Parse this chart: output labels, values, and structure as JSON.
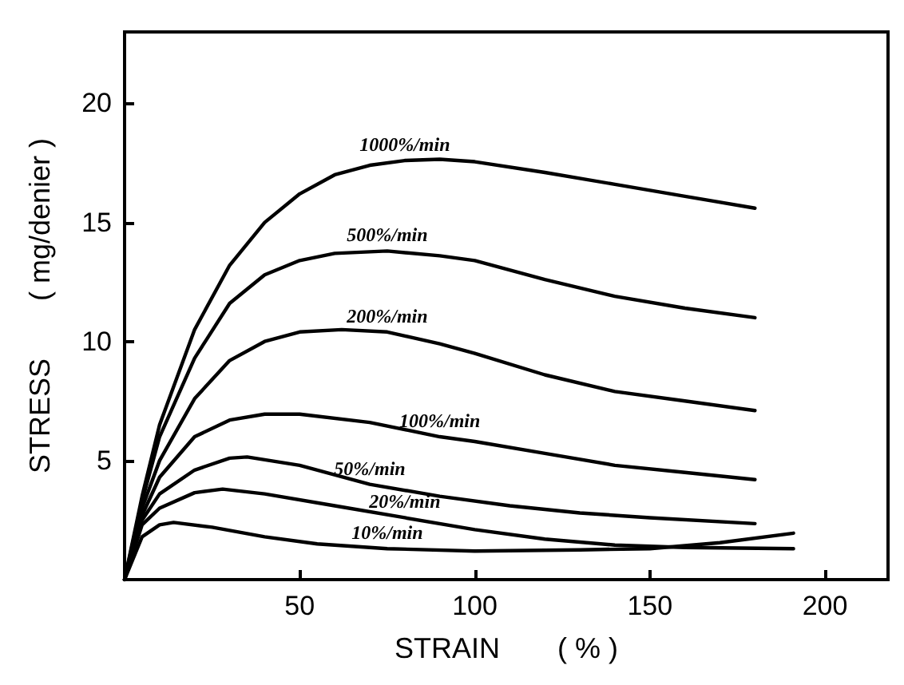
{
  "chart_data": {
    "type": "line",
    "xlabel": "STRAIN　　( % )",
    "ylabel": "STRESS　　( mg/denier )",
    "xlim": [
      0,
      218
    ],
    "ylim": [
      0,
      23
    ],
    "xticks": [
      50,
      100,
      150,
      200
    ],
    "yticks": [
      5,
      10,
      15,
      20
    ],
    "grid": false,
    "legend": false,
    "marker": "none",
    "line_style": "solid",
    "series": [
      {
        "name": "1000%/min",
        "color": "#000000",
        "x": [
          0,
          5,
          10,
          20,
          30,
          40,
          50,
          60,
          70,
          80,
          90,
          100,
          120,
          140,
          160,
          180
        ],
        "values": [
          0,
          3.5,
          6.5,
          10.5,
          13.2,
          15,
          16.2,
          17,
          17.4,
          17.6,
          17.65,
          17.55,
          17.1,
          16.6,
          16.1,
          15.6
        ]
      },
      {
        "name": "500%/min",
        "color": "#000000",
        "x": [
          0,
          5,
          10,
          20,
          30,
          40,
          50,
          60,
          75,
          90,
          100,
          120,
          140,
          160,
          180
        ],
        "values": [
          0,
          3.3,
          6,
          9.3,
          11.6,
          12.8,
          13.4,
          13.7,
          13.8,
          13.6,
          13.4,
          12.6,
          11.9,
          11.4,
          11
        ]
      },
      {
        "name": "200%/min",
        "color": "#000000",
        "x": [
          0,
          5,
          10,
          20,
          30,
          40,
          50,
          62,
          75,
          90,
          100,
          120,
          140,
          160,
          180
        ],
        "values": [
          0,
          3,
          5,
          7.6,
          9.2,
          10,
          10.4,
          10.5,
          10.4,
          9.9,
          9.5,
          8.6,
          7.9,
          7.5,
          7.1
        ]
      },
      {
        "name": "100%/min",
        "color": "#000000",
        "x": [
          0,
          5,
          10,
          20,
          30,
          40,
          50,
          70,
          90,
          100,
          120,
          140,
          160,
          180
        ],
        "values": [
          0,
          2.7,
          4.3,
          6,
          6.7,
          6.95,
          6.95,
          6.6,
          6,
          5.8,
          5.3,
          4.8,
          4.5,
          4.2
        ]
      },
      {
        "name": "50%/min",
        "color": "#000000",
        "x": [
          0,
          5,
          10,
          20,
          30,
          35,
          50,
          70,
          90,
          110,
          130,
          150,
          180
        ],
        "values": [
          0,
          2.5,
          3.6,
          4.6,
          5.1,
          5.15,
          4.8,
          4,
          3.5,
          3.1,
          2.8,
          2.6,
          2.35
        ]
      },
      {
        "name": "20%/min",
        "color": "#000000",
        "x": [
          0,
          5,
          10,
          20,
          28,
          40,
          60,
          80,
          100,
          120,
          140,
          160,
          191
        ],
        "values": [
          0,
          2.3,
          3,
          3.65,
          3.8,
          3.6,
          3.1,
          2.6,
          2.1,
          1.7,
          1.45,
          1.35,
          1.3
        ]
      },
      {
        "name": "10%/min",
        "color": "#000000",
        "x": [
          0,
          5,
          10,
          14,
          25,
          40,
          55,
          75,
          100,
          130,
          150,
          170,
          191
        ],
        "values": [
          0,
          1.8,
          2.3,
          2.4,
          2.2,
          1.8,
          1.5,
          1.3,
          1.2,
          1.25,
          1.3,
          1.55,
          1.95
        ]
      }
    ]
  }
}
